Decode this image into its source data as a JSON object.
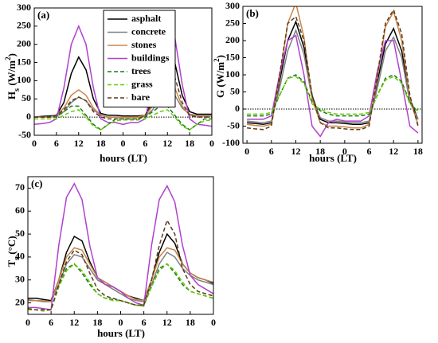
{
  "chart_data": [
    {
      "type": "line",
      "panel": "(a)",
      "ylabel": [
        {
          "text": "H"
        },
        {
          "text": "s",
          "sub": true
        },
        {
          "text": " (W/m"
        },
        {
          "text": "2",
          "sup": true
        },
        {
          "text": ")"
        }
      ],
      "xlabel": "hours (LT)",
      "legend": "upper center",
      "x": [
        0,
        2,
        4,
        6,
        8,
        10,
        12,
        14,
        16,
        18,
        20,
        22,
        24,
        26,
        28,
        30,
        32,
        34,
        36,
        38,
        40,
        42,
        44,
        46,
        48
      ],
      "xlim": [
        0,
        48
      ],
      "xticks": [
        0,
        6,
        12,
        18,
        {
          "value": 24,
          "label": "0"
        },
        {
          "value": 30,
          "label": "6"
        },
        {
          "value": 36,
          "label": "12"
        },
        {
          "value": 42,
          "label": "18"
        },
        {
          "value": 48,
          "label": "0"
        }
      ],
      "ylim": [
        -50,
        300
      ],
      "yticks": [
        -50,
        0,
        50,
        100,
        150,
        200,
        250,
        300
      ],
      "series": [
        {
          "name": "asphalt",
          "color": "#000000",
          "dash": false,
          "values": [
            0,
            2,
            3,
            5,
            40,
            120,
            165,
            130,
            50,
            10,
            5,
            5,
            3,
            3,
            3,
            5,
            45,
            130,
            188,
            150,
            60,
            15,
            8,
            8,
            8
          ]
        },
        {
          "name": "concrete",
          "color": "#808080",
          "dash": false,
          "values": [
            0,
            0,
            0,
            2,
            15,
            40,
            55,
            45,
            20,
            5,
            0,
            0,
            0,
            0,
            0,
            2,
            20,
            55,
            72,
            60,
            25,
            8,
            5,
            5,
            5
          ]
        },
        {
          "name": "stones",
          "color": "#c8864a",
          "dash": false,
          "values": [
            0,
            0,
            0,
            5,
            25,
            60,
            75,
            60,
            25,
            5,
            0,
            0,
            0,
            0,
            0,
            5,
            30,
            80,
            95,
            80,
            30,
            5,
            3,
            3,
            3
          ]
        },
        {
          "name": "buildings",
          "color": "#b040d0",
          "dash": false,
          "values": [
            -20,
            -18,
            -15,
            -5,
            80,
            200,
            250,
            200,
            80,
            -5,
            -15,
            -15,
            -20,
            -15,
            -15,
            -5,
            90,
            230,
            280,
            220,
            90,
            -5,
            -20,
            -22,
            -25
          ]
        },
        {
          "name": "trees",
          "color": "#1a7a1a",
          "dash": true,
          "values": [
            0,
            0,
            0,
            0,
            15,
            30,
            30,
            5,
            -20,
            -35,
            -20,
            -5,
            -5,
            -5,
            -5,
            0,
            15,
            30,
            30,
            5,
            -20,
            -35,
            -20,
            -5,
            -5
          ]
        },
        {
          "name": "grass",
          "color": "#66cc00",
          "dash": true,
          "values": [
            -5,
            -5,
            -5,
            -5,
            5,
            15,
            20,
            0,
            -25,
            -35,
            -20,
            -10,
            -8,
            -8,
            -8,
            -5,
            5,
            15,
            20,
            0,
            -25,
            -35,
            -20,
            -10,
            -8
          ]
        },
        {
          "name": "bare",
          "color": "#5a3a1a",
          "dash": true,
          "values": [
            0,
            0,
            0,
            5,
            20,
            45,
            55,
            45,
            15,
            0,
            -5,
            -5,
            -5,
            -5,
            -5,
            5,
            40,
            110,
            145,
            110,
            40,
            5,
            0,
            0,
            0
          ]
        }
      ]
    },
    {
      "type": "line",
      "panel": "(b)",
      "ylabel": [
        {
          "text": "G (W/m"
        },
        {
          "text": "2",
          "sup": true
        },
        {
          "text": ")"
        }
      ],
      "xlabel": "hours (LT)",
      "x": [
        0,
        2,
        4,
        6,
        8,
        10,
        12,
        14,
        16,
        18,
        20,
        22,
        24,
        26,
        28,
        30,
        32,
        34,
        36,
        38,
        40,
        42
      ],
      "xlim": [
        -1,
        43
      ],
      "xticks": [
        0,
        6,
        12,
        18,
        {
          "value": 24,
          "label": "0"
        },
        {
          "value": 30,
          "label": "6"
        },
        {
          "value": 36,
          "label": "12"
        },
        {
          "value": 42,
          "label": "18"
        }
      ],
      "ylim": [
        -100,
        300
      ],
      "yticks": [
        -100,
        -50,
        0,
        50,
        100,
        150,
        200,
        250,
        300
      ],
      "series": [
        {
          "color": "#000000",
          "dash": false,
          "values": [
            -40,
            -42,
            -45,
            -40,
            80,
            200,
            255,
            180,
            40,
            -30,
            -40,
            -40,
            -42,
            -45,
            -45,
            -40,
            80,
            190,
            235,
            170,
            30,
            -30
          ]
        },
        {
          "color": "#808080",
          "dash": false,
          "values": [
            -35,
            -38,
            -40,
            -35,
            60,
            170,
            230,
            160,
            30,
            -25,
            -35,
            -35,
            -38,
            -40,
            -40,
            -35,
            60,
            170,
            210,
            150,
            20,
            -30
          ]
        },
        {
          "color": "#c8864a",
          "dash": false,
          "values": [
            -45,
            -48,
            -50,
            -45,
            90,
            250,
            310,
            210,
            30,
            -40,
            -50,
            -50,
            -52,
            -55,
            -55,
            -45,
            90,
            240,
            285,
            200,
            30,
            -45
          ]
        },
        {
          "color": "#b040d0",
          "dash": false,
          "values": [
            -30,
            -30,
            -30,
            -20,
            100,
            200,
            215,
            100,
            -50,
            -80,
            -40,
            -30,
            -35,
            -35,
            -35,
            -20,
            110,
            200,
            200,
            80,
            -50,
            -70
          ]
        },
        {
          "color": "#1a7a1a",
          "dash": true,
          "values": [
            -20,
            -20,
            -20,
            -15,
            40,
            90,
            100,
            80,
            20,
            -5,
            -15,
            -20,
            -20,
            -20,
            -20,
            -15,
            40,
            90,
            100,
            80,
            20,
            -10
          ]
        },
        {
          "color": "#66cc00",
          "dash": true,
          "values": [
            -15,
            -15,
            -15,
            -10,
            40,
            90,
            95,
            75,
            15,
            0,
            -10,
            -15,
            -15,
            -15,
            -15,
            -10,
            40,
            85,
            95,
            75,
            15,
            -5
          ]
        },
        {
          "color": "#5a3a1a",
          "dash": true,
          "values": [
            -55,
            -58,
            -60,
            -50,
            100,
            250,
            270,
            200,
            40,
            -40,
            -55,
            -55,
            -58,
            -60,
            -60,
            -50,
            100,
            250,
            290,
            220,
            40,
            -50
          ]
        }
      ]
    },
    {
      "type": "line",
      "panel": "(c)",
      "ylabel": [
        {
          "text": "T"
        },
        {
          "text": "s",
          "sub": true
        },
        {
          "text": " (°C)"
        }
      ],
      "xlabel": "hours (LT)",
      "x": [
        0,
        2,
        4,
        6,
        8,
        10,
        12,
        14,
        16,
        18,
        20,
        22,
        24,
        26,
        28,
        30,
        32,
        34,
        36,
        38,
        40,
        42,
        44,
        46,
        48
      ],
      "xlim": [
        0,
        48
      ],
      "xticks": [
        0,
        6,
        12,
        18,
        {
          "value": 24,
          "label": "0"
        },
        {
          "value": 30,
          "label": "6"
        },
        {
          "value": 36,
          "label": "12"
        },
        {
          "value": 42,
          "label": "18"
        },
        {
          "value": 48,
          "label": "0"
        }
      ],
      "ylim": [
        15,
        75
      ],
      "yticks": [
        20,
        30,
        40,
        50,
        60,
        70
      ],
      "series": [
        {
          "color": "#000000",
          "dash": false,
          "values": [
            22,
            22,
            21.5,
            21,
            30,
            42,
            49,
            47,
            38,
            31,
            29,
            27,
            25,
            23,
            22,
            21,
            30,
            42,
            50,
            46,
            37,
            33,
            31,
            30,
            28.5
          ]
        },
        {
          "color": "#808080",
          "dash": false,
          "values": [
            21,
            21,
            20.5,
            20.5,
            28,
            37,
            41,
            40,
            35,
            30,
            28,
            26,
            24,
            22,
            21,
            20.5,
            28,
            37,
            42,
            40,
            35,
            32,
            30,
            29,
            28
          ]
        },
        {
          "color": "#c8864a",
          "dash": false,
          "values": [
            21.5,
            21,
            21,
            20.5,
            30,
            40,
            44,
            43,
            37,
            31,
            29,
            27,
            25,
            23,
            21.5,
            21,
            30,
            40,
            44,
            43,
            37,
            33,
            31,
            30,
            29
          ]
        },
        {
          "color": "#b040d0",
          "dash": false,
          "values": [
            18,
            18,
            17.5,
            17,
            45,
            66,
            72,
            65,
            45,
            31,
            28,
            27,
            25,
            22,
            20,
            19,
            45,
            65,
            71,
            64,
            45,
            32,
            28,
            26,
            24
          ]
        },
        {
          "color": "#1a7a1a",
          "dash": true,
          "values": [
            17,
            17,
            16.5,
            17,
            27,
            35,
            37,
            33,
            28,
            24,
            22,
            21.5,
            21,
            20,
            19,
            19,
            27,
            35,
            37,
            33,
            28,
            25,
            24,
            23,
            22
          ]
        },
        {
          "color": "#66cc00",
          "dash": true,
          "values": [
            17,
            17,
            16.5,
            17,
            27,
            34,
            37,
            34,
            29,
            24,
            22,
            21,
            21,
            20,
            19,
            18.5,
            27,
            34,
            37,
            34,
            29,
            25,
            24,
            23,
            22
          ]
        },
        {
          "color": "#5a3a1a",
          "dash": true,
          "values": [
            17.5,
            17,
            17,
            17,
            28,
            38,
            43,
            41,
            33,
            26,
            23,
            22,
            21,
            20,
            19,
            19,
            30,
            45,
            56,
            50,
            35,
            28,
            25,
            24,
            23
          ]
        }
      ]
    }
  ]
}
